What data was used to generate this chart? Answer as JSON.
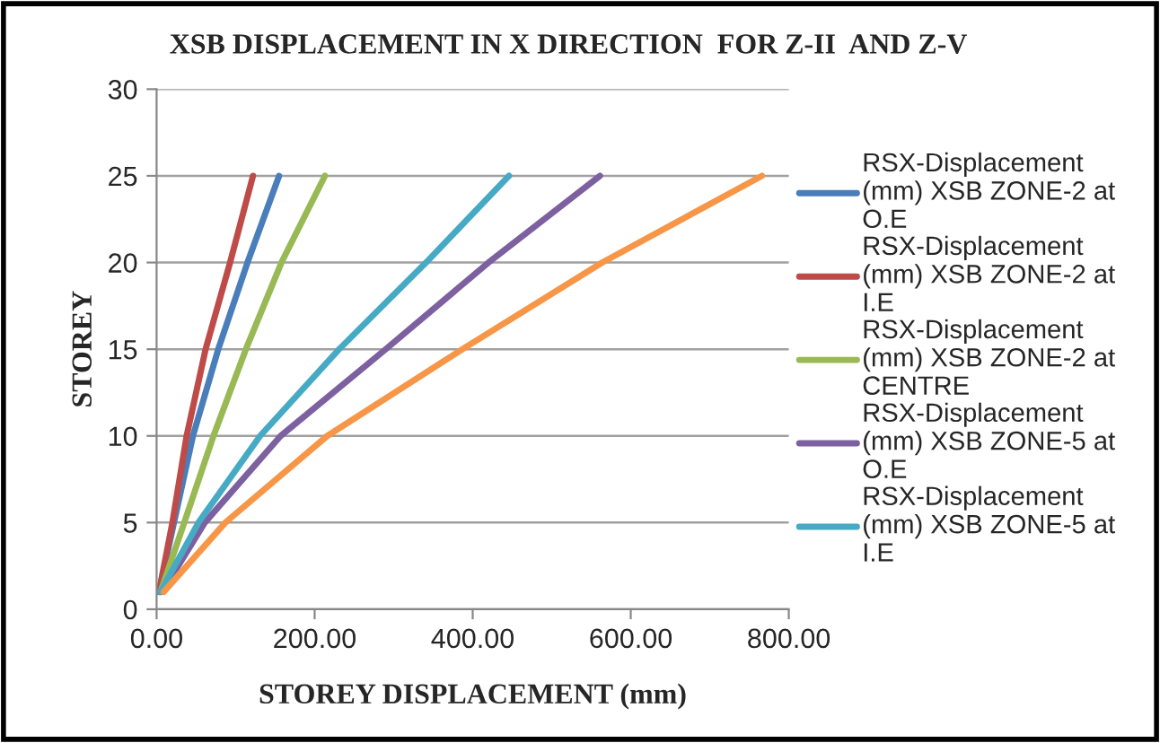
{
  "chart_data": {
    "type": "line",
    "title": "XSB DISPLACEMENT IN X DIRECTION  FOR Z-II  AND Z-V",
    "xlabel": "STOREY DISPLACEMENT (mm)",
    "ylabel": "STOREY",
    "xlim": [
      0,
      800
    ],
    "xticks": [
      {
        "value": 0,
        "label": "0.00"
      },
      {
        "value": 200,
        "label": "200.00"
      },
      {
        "value": 400,
        "label": "400.00"
      },
      {
        "value": 600,
        "label": "600.00"
      },
      {
        "value": 800,
        "label": "800.00"
      }
    ],
    "ylim": [
      0,
      30
    ],
    "yticks": [
      0,
      5,
      10,
      15,
      20,
      25,
      30
    ],
    "grid": "y",
    "legend": "right",
    "marker": "none",
    "line_style": "solid",
    "series": [
      {
        "name": "RSX-Displacement\n(mm) XSB ZONE-2 at\nO.E",
        "color": "#4a7ebb",
        "x": [
          3,
          22,
          46,
          78,
          115,
          155
        ],
        "values": [
          1,
          5,
          10,
          15,
          20,
          25
        ]
      },
      {
        "name": "RSX-Displacement\n(mm) XSB ZONE-2 at\nI.E",
        "color": "#be4b48",
        "x": [
          3,
          20,
          38,
          62,
          93,
          122
        ],
        "values": [
          1,
          5,
          10,
          15,
          20,
          25
        ]
      },
      {
        "name": "RSX-Displacement\n(mm) XSB ZONE-2 at\nCENTRE",
        "color": "#98b954",
        "x": [
          5,
          35,
          72,
          113,
          158,
          213
        ],
        "values": [
          1,
          5,
          10,
          15,
          20,
          25
        ]
      },
      {
        "name": "RSX-Displacement\n(mm) XSB ZONE-5 at\nO.E",
        "color": "#7d60a0",
        "x": [
          7,
          61,
          157,
          290,
          420,
          561
        ],
        "values": [
          1,
          5,
          10,
          15,
          20,
          25
        ]
      },
      {
        "name": "RSX-Displacement\n(mm) XSB ZONE-5 at\nI.E",
        "color": "#46aac5",
        "x": [
          5,
          53,
          131,
          231,
          341,
          446
        ],
        "values": [
          1,
          5,
          10,
          15,
          20,
          25
        ]
      },
      {
        "color": "#f79646",
        "x": [
          9,
          87,
          216,
          387,
          564,
          766
        ],
        "values": [
          1,
          5,
          10,
          15,
          20,
          25
        ]
      }
    ]
  }
}
